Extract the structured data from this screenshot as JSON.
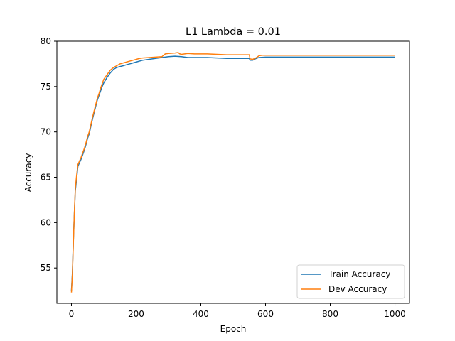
{
  "chart_data": {
    "type": "line",
    "title": "L1 Lambda = 0.01",
    "xlabel": "Epoch",
    "ylabel": "Accuracy",
    "xlim": [
      -45,
      1045
    ],
    "ylim": [
      51.1,
      80.0
    ],
    "xticks": [
      0,
      200,
      400,
      600,
      800,
      1000
    ],
    "yticks": [
      55,
      60,
      65,
      70,
      75,
      80
    ],
    "grid": false,
    "legend": "lower-right",
    "series": [
      {
        "name": "Train Accuracy",
        "color": "#1f77b4",
        "points": [
          [
            0,
            52.5
          ],
          [
            3,
            54.5
          ],
          [
            6,
            58
          ],
          [
            9,
            61
          ],
          [
            12,
            63.5
          ],
          [
            16,
            64.8
          ],
          [
            20,
            66.2
          ],
          [
            25,
            66.6
          ],
          [
            30,
            67
          ],
          [
            35,
            67.5
          ],
          [
            40,
            68
          ],
          [
            45,
            68.6
          ],
          [
            50,
            69.3
          ],
          [
            55,
            69.8
          ],
          [
            60,
            70.6
          ],
          [
            65,
            71.4
          ],
          [
            70,
            72.1
          ],
          [
            75,
            72.8
          ],
          [
            80,
            73.5
          ],
          [
            85,
            74
          ],
          [
            90,
            74.5
          ],
          [
            95,
            75
          ],
          [
            100,
            75.4
          ],
          [
            110,
            76
          ],
          [
            120,
            76.5
          ],
          [
            130,
            76.9
          ],
          [
            140,
            77.1
          ],
          [
            150,
            77.2
          ],
          [
            160,
            77.3
          ],
          [
            170,
            77.4
          ],
          [
            180,
            77.5
          ],
          [
            190,
            77.6
          ],
          [
            200,
            77.7
          ],
          [
            210,
            77.8
          ],
          [
            220,
            77.9
          ],
          [
            240,
            78
          ],
          [
            260,
            78.1
          ],
          [
            280,
            78.2
          ],
          [
            300,
            78.3
          ],
          [
            320,
            78.35
          ],
          [
            340,
            78.3
          ],
          [
            360,
            78.2
          ],
          [
            380,
            78.2
          ],
          [
            400,
            78.2
          ],
          [
            420,
            78.2
          ],
          [
            450,
            78.15
          ],
          [
            480,
            78.1
          ],
          [
            500,
            78.1
          ],
          [
            540,
            78.1
          ],
          [
            550,
            78.1
          ],
          [
            552,
            77.9
          ],
          [
            560,
            77.9
          ],
          [
            565,
            78
          ],
          [
            575,
            78.15
          ],
          [
            580,
            78.2
          ],
          [
            600,
            78.25
          ],
          [
            700,
            78.25
          ],
          [
            800,
            78.25
          ],
          [
            900,
            78.25
          ],
          [
            1000,
            78.25
          ]
        ]
      },
      {
        "name": "Dev Accuracy",
        "color": "#ff7f0e",
        "points": [
          [
            0,
            52.3
          ],
          [
            3,
            54.3
          ],
          [
            6,
            57.8
          ],
          [
            9,
            61
          ],
          [
            12,
            63.8
          ],
          [
            16,
            65.2
          ],
          [
            20,
            66.4
          ],
          [
            25,
            66.8
          ],
          [
            30,
            67.2
          ],
          [
            35,
            67.7
          ],
          [
            40,
            68.2
          ],
          [
            45,
            68.8
          ],
          [
            50,
            69.5
          ],
          [
            55,
            70
          ],
          [
            60,
            70.8
          ],
          [
            65,
            71.6
          ],
          [
            70,
            72.3
          ],
          [
            75,
            73
          ],
          [
            80,
            73.7
          ],
          [
            85,
            74.2
          ],
          [
            90,
            74.8
          ],
          [
            95,
            75.3
          ],
          [
            100,
            75.8
          ],
          [
            110,
            76.3
          ],
          [
            120,
            76.8
          ],
          [
            130,
            77.1
          ],
          [
            140,
            77.3
          ],
          [
            150,
            77.5
          ],
          [
            160,
            77.6
          ],
          [
            170,
            77.7
          ],
          [
            180,
            77.8
          ],
          [
            190,
            77.9
          ],
          [
            200,
            78
          ],
          [
            210,
            78.1
          ],
          [
            220,
            78.15
          ],
          [
            240,
            78.2
          ],
          [
            260,
            78.25
          ],
          [
            280,
            78.3
          ],
          [
            290,
            78.6
          ],
          [
            300,
            78.65
          ],
          [
            320,
            78.7
          ],
          [
            330,
            78.75
          ],
          [
            335,
            78.6
          ],
          [
            340,
            78.55
          ],
          [
            360,
            78.65
          ],
          [
            380,
            78.6
          ],
          [
            400,
            78.6
          ],
          [
            420,
            78.6
          ],
          [
            450,
            78.55
          ],
          [
            480,
            78.5
          ],
          [
            500,
            78.5
          ],
          [
            540,
            78.5
          ],
          [
            550,
            78.5
          ],
          [
            552,
            78.05
          ],
          [
            560,
            78
          ],
          [
            570,
            78.15
          ],
          [
            580,
            78.4
          ],
          [
            590,
            78.45
          ],
          [
            600,
            78.45
          ],
          [
            700,
            78.45
          ],
          [
            800,
            78.45
          ],
          [
            900,
            78.45
          ],
          [
            1000,
            78.45
          ]
        ]
      }
    ]
  }
}
